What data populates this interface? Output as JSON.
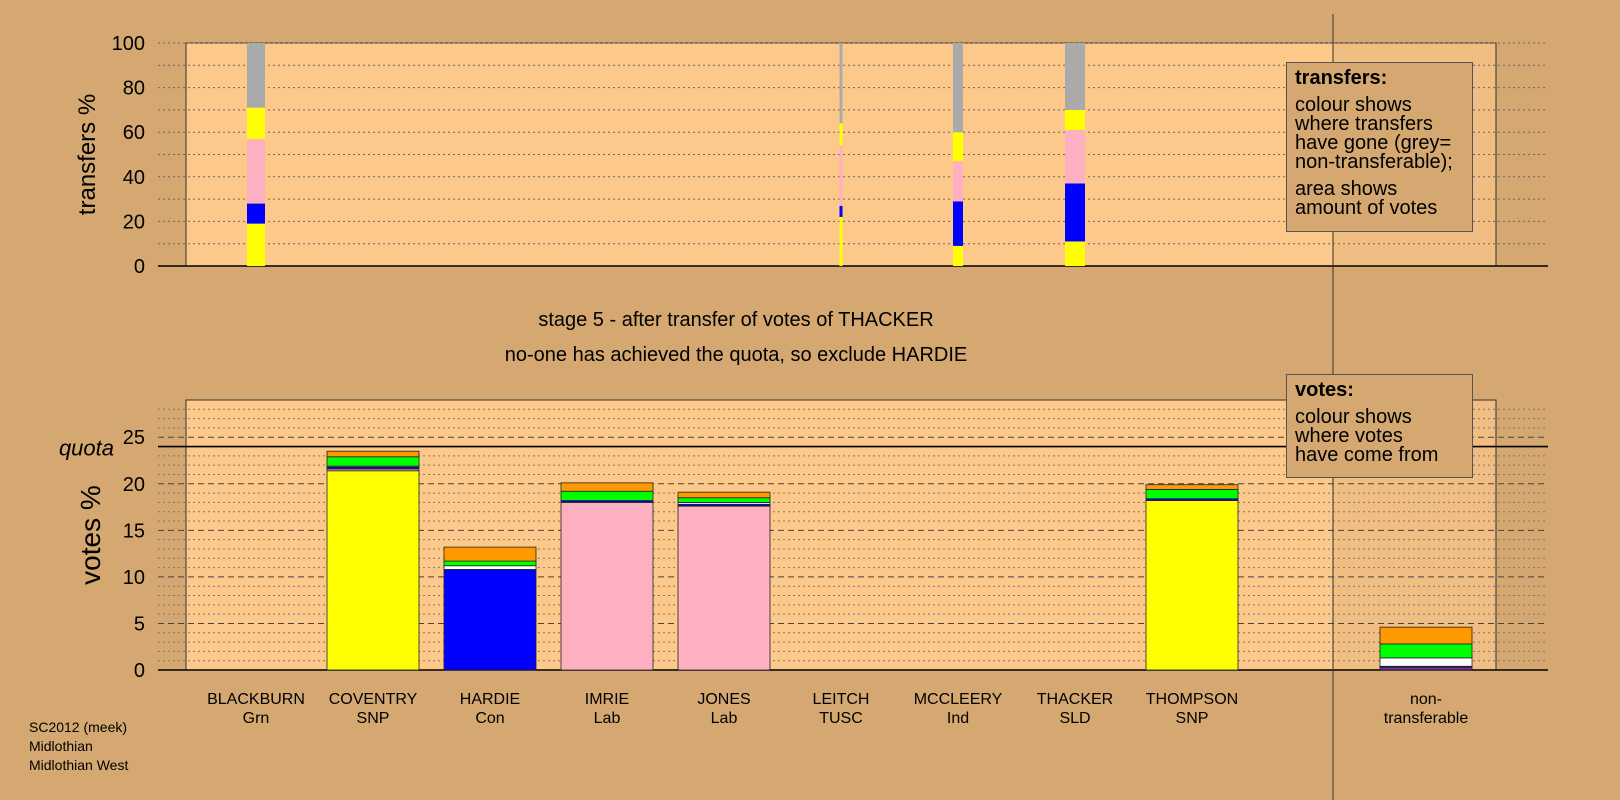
{
  "colors": {
    "background": "#d4a870",
    "plot_bg": "#fdc98a",
    "SNP": "#ffff00",
    "Lab": "#ffb0c0",
    "Con": "#0000ff",
    "Grn": "#00ff00",
    "SLD": "#ff9900",
    "TUSC": "#ffffff",
    "Ind": "#7030a0",
    "non_transferable": "#aaaaaa"
  },
  "headline": {
    "line1": "stage 5 - after transfer of votes of THACKER",
    "line2": "no-one has achieved the quota, so exclude HARDIE"
  },
  "legend_transfers": {
    "title": "transfers:",
    "line1": "colour shows",
    "line2": "where transfers",
    "line3": "have gone (grey=",
    "line4": "non-transferable);",
    "line5": "area shows",
    "line6": "amount of votes"
  },
  "legend_votes": {
    "title": "votes:",
    "line1": "colour shows",
    "line2": "where votes",
    "line3": "have come from"
  },
  "footer": {
    "line1": "SC2012 (meek)",
    "line2": "Midlothian",
    "line3": "Midlothian West"
  },
  "chart_data": [
    {
      "type": "bar",
      "subtype": "stacked-transfers",
      "ylabel": "transfers %",
      "ylim": [
        0,
        100
      ],
      "yticks": [
        0,
        20,
        40,
        60,
        80,
        100
      ],
      "grid": true,
      "columns": [
        {
          "name": "BLACKBURN",
          "segments": [
            {
              "color": "SNP",
              "value": 19
            },
            {
              "color": "Con",
              "value": 9
            },
            {
              "color": "Lab",
              "value": 29
            },
            {
              "color": "SNP",
              "value": 14
            },
            {
              "color": "non_transferable",
              "value": 29
            }
          ]
        },
        {
          "name": "LEITCH",
          "segments": [
            {
              "color": "SNP",
              "value": 22
            },
            {
              "color": "Con",
              "value": 5
            },
            {
              "color": "Lab",
              "value": 27
            },
            {
              "color": "SNP",
              "value": 10
            },
            {
              "color": "non_transferable",
              "value": 36
            }
          ]
        },
        {
          "name": "MCCLEERY",
          "segments": [
            {
              "color": "SNP",
              "value": 9
            },
            {
              "color": "Con",
              "value": 20
            },
            {
              "color": "Lab",
              "value": 18
            },
            {
              "color": "SNP",
              "value": 13
            },
            {
              "color": "non_transferable",
              "value": 40
            }
          ]
        },
        {
          "name": "THACKER",
          "segments": [
            {
              "color": "SNP",
              "value": 11
            },
            {
              "color": "Con",
              "value": 26
            },
            {
              "color": "Lab",
              "value": 24
            },
            {
              "color": "SNP",
              "value": 9
            },
            {
              "color": "non_transferable",
              "value": 30
            }
          ]
        }
      ]
    },
    {
      "type": "bar",
      "subtype": "stacked-votes",
      "ylabel": "votes %",
      "ylim": [
        0,
        29
      ],
      "yticks": [
        0,
        5,
        10,
        15,
        20,
        25
      ],
      "quota": 24,
      "quota_label": "quota",
      "grid": true,
      "categories": [
        {
          "name": "BLACKBURN",
          "party": "Grn"
        },
        {
          "name": "COVENTRY",
          "party": "SNP"
        },
        {
          "name": "HARDIE",
          "party": "Con"
        },
        {
          "name": "IMRIE",
          "party": "Lab"
        },
        {
          "name": "JONES",
          "party": "Lab"
        },
        {
          "name": "LEITCH",
          "party": "TUSC"
        },
        {
          "name": "MCCLEERY",
          "party": "Ind"
        },
        {
          "name": "THACKER",
          "party": "SLD"
        },
        {
          "name": "THOMPSON",
          "party": "SNP"
        },
        {
          "name": "non-",
          "party": "transferable"
        }
      ],
      "stacks": [
        [],
        [
          {
            "color": "SNP",
            "value": 21.4
          },
          {
            "color": "Lab",
            "value": 0.2
          },
          {
            "color": "Con",
            "value": 0.2
          },
          {
            "color": "TUSC",
            "value": 0.1
          },
          {
            "color": "Grn",
            "value": 1.0
          },
          {
            "color": "SLD",
            "value": 0.6
          }
        ],
        [
          {
            "color": "Con",
            "value": 10.8
          },
          {
            "color": "TUSC",
            "value": 0.4
          },
          {
            "color": "Grn",
            "value": 0.5
          },
          {
            "color": "SLD",
            "value": 1.5
          }
        ],
        [
          {
            "color": "Lab",
            "value": 18.0
          },
          {
            "color": "Con",
            "value": 0.2
          },
          {
            "color": "Grn",
            "value": 1.0
          },
          {
            "color": "SLD",
            "value": 0.9
          }
        ],
        [
          {
            "color": "Lab",
            "value": 17.6
          },
          {
            "color": "Con",
            "value": 0.2
          },
          {
            "color": "TUSC",
            "value": 0.2
          },
          {
            "color": "Grn",
            "value": 0.5
          },
          {
            "color": "SLD",
            "value": 0.6
          }
        ],
        [],
        [],
        [],
        [
          {
            "color": "SNP",
            "value": 18.2
          },
          {
            "color": "Con",
            "value": 0.2
          },
          {
            "color": "Grn",
            "value": 1.0
          },
          {
            "color": "SLD",
            "value": 0.5
          }
        ],
        [
          {
            "color": "Ind",
            "value": 0.3
          },
          {
            "color": "Con",
            "value": 0.1
          },
          {
            "color": "TUSC",
            "value": 0.9
          },
          {
            "color": "Grn",
            "value": 1.5
          },
          {
            "color": "SLD",
            "value": 1.8
          }
        ]
      ]
    }
  ]
}
